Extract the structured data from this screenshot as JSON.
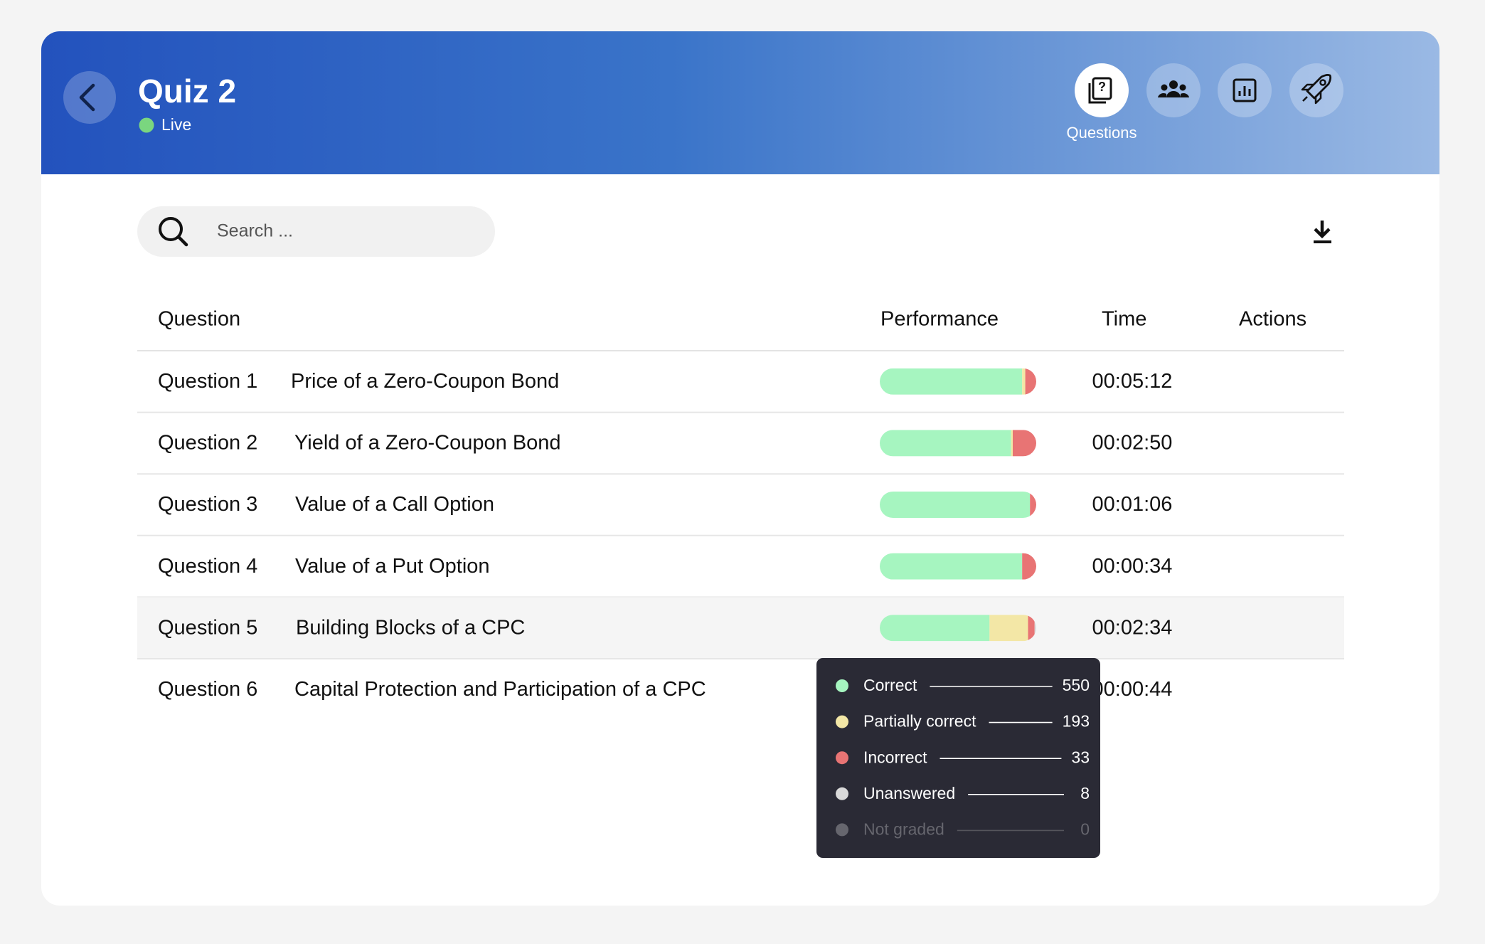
{
  "header": {
    "title": "Quiz 2",
    "status": "Live",
    "nav_label": "Questions"
  },
  "search": {
    "placeholder": "Search ..."
  },
  "table": {
    "columns": [
      "Question",
      "Performance",
      "Time",
      "Actions"
    ],
    "rows": [
      {
        "number": "Question 1",
        "title": "Price of a Zero-Coupon Bond",
        "time": "00:05:12",
        "performance": [
          91,
          2,
          7,
          0,
          0
        ]
      },
      {
        "number": "Question 2",
        "title": "Yield of a Zero-Coupon Bond",
        "time": "00:02:50",
        "performance": [
          84,
          1,
          15,
          0,
          0
        ]
      },
      {
        "number": "Question 3",
        "title": "Value of a Call Option",
        "time": "00:01:06",
        "performance": [
          96,
          0,
          4,
          0,
          0
        ]
      },
      {
        "number": "Question 4",
        "title": "Value of a Put Option",
        "time": "00:00:34",
        "performance": [
          91,
          0,
          9,
          0,
          0
        ]
      },
      {
        "number": "Question 5",
        "title": "Building Blocks of a CPC",
        "time": "00:02:34",
        "performance": [
          550,
          193,
          33,
          8,
          0
        ]
      },
      {
        "number": "Question 6",
        "title": "Capital Protection and Participation of a CPC",
        "time": "00:00:44"
      }
    ]
  },
  "tooltip": {
    "labels": [
      "Correct",
      "Partially correct",
      "Incorrect",
      "Unanswered",
      "Not graded"
    ],
    "colors": [
      "#a6f5c0",
      "#f3e7a6",
      "#e87474",
      "#d9d9d9",
      "#66666e"
    ]
  }
}
